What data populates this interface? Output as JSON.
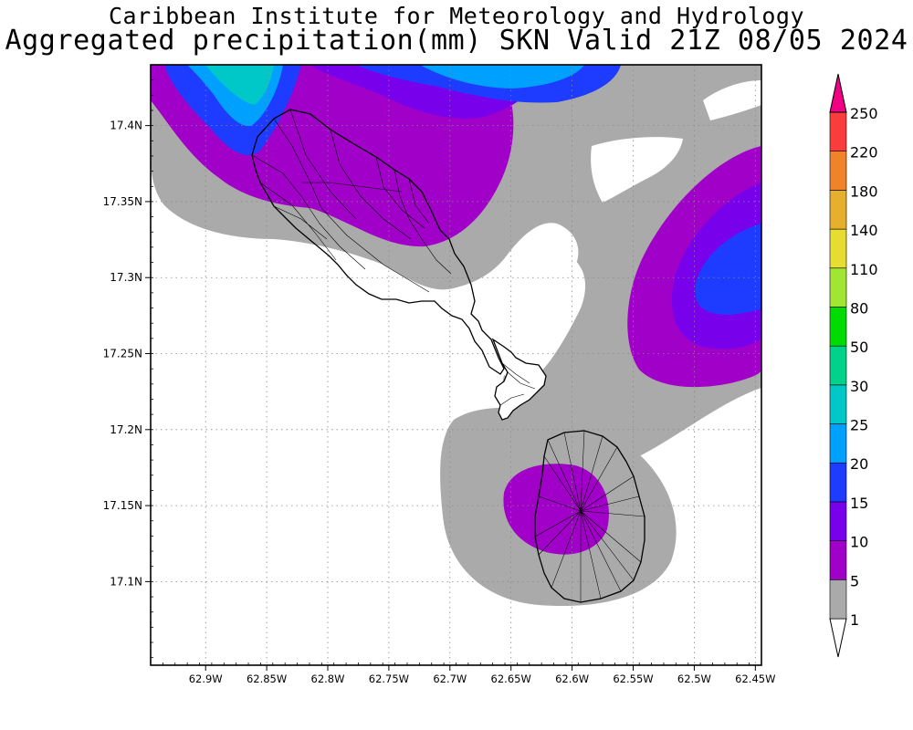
{
  "title": "Caribbean Institute for Meteorology and Hydrology",
  "subtitle": "Aggregated precipitation(mm) SKN Valid 21Z 08/05 2024",
  "map": {
    "lon_range": [
      -62.945,
      -62.445
    ],
    "lat_range": [
      17.045,
      17.44
    ],
    "lon_ticks": [
      {
        "value": -62.9,
        "label": "62.9W"
      },
      {
        "value": -62.85,
        "label": "62.85W"
      },
      {
        "value": -62.8,
        "label": "62.8W"
      },
      {
        "value": -62.75,
        "label": "62.75W"
      },
      {
        "value": -62.7,
        "label": "62.7W"
      },
      {
        "value": -62.65,
        "label": "62.65W"
      },
      {
        "value": -62.6,
        "label": "62.6W"
      },
      {
        "value": -62.55,
        "label": "62.55W"
      },
      {
        "value": -62.5,
        "label": "62.5W"
      },
      {
        "value": -62.45,
        "label": "62.45W"
      }
    ],
    "lat_ticks": [
      {
        "value": 17.4,
        "label": "17.4N"
      },
      {
        "value": 17.35,
        "label": "17.35N"
      },
      {
        "value": 17.3,
        "label": "17.3N"
      },
      {
        "value": 17.25,
        "label": "17.25N"
      },
      {
        "value": 17.2,
        "label": "17.2N"
      },
      {
        "value": 17.15,
        "label": "17.15N"
      },
      {
        "value": 17.1,
        "label": "17.1N"
      }
    ],
    "grid": "dotted"
  },
  "legend": {
    "units": "mm",
    "levels": [
      {
        "label": "1",
        "color": "#ffffff"
      },
      {
        "label": "5",
        "color": "#aaaaaa"
      },
      {
        "label": "10",
        "color": "#a100c8"
      },
      {
        "label": "15",
        "color": "#7800ea"
      },
      {
        "label": "20",
        "color": "#1e3cff"
      },
      {
        "label": "25",
        "color": "#00a0ff"
      },
      {
        "label": "30",
        "color": "#00c8c8"
      },
      {
        "label": "50",
        "color": "#00d28c"
      },
      {
        "label": "80",
        "color": "#00dc00"
      },
      {
        "label": "110",
        "color": "#a0e632"
      },
      {
        "label": "140",
        "color": "#e6dc32"
      },
      {
        "label": "180",
        "color": "#e6af2d"
      },
      {
        "label": "220",
        "color": "#f08228"
      },
      {
        "label": "250",
        "color": "#fa3c3c"
      }
    ],
    "top_arrow_color": "#f00082"
  }
}
